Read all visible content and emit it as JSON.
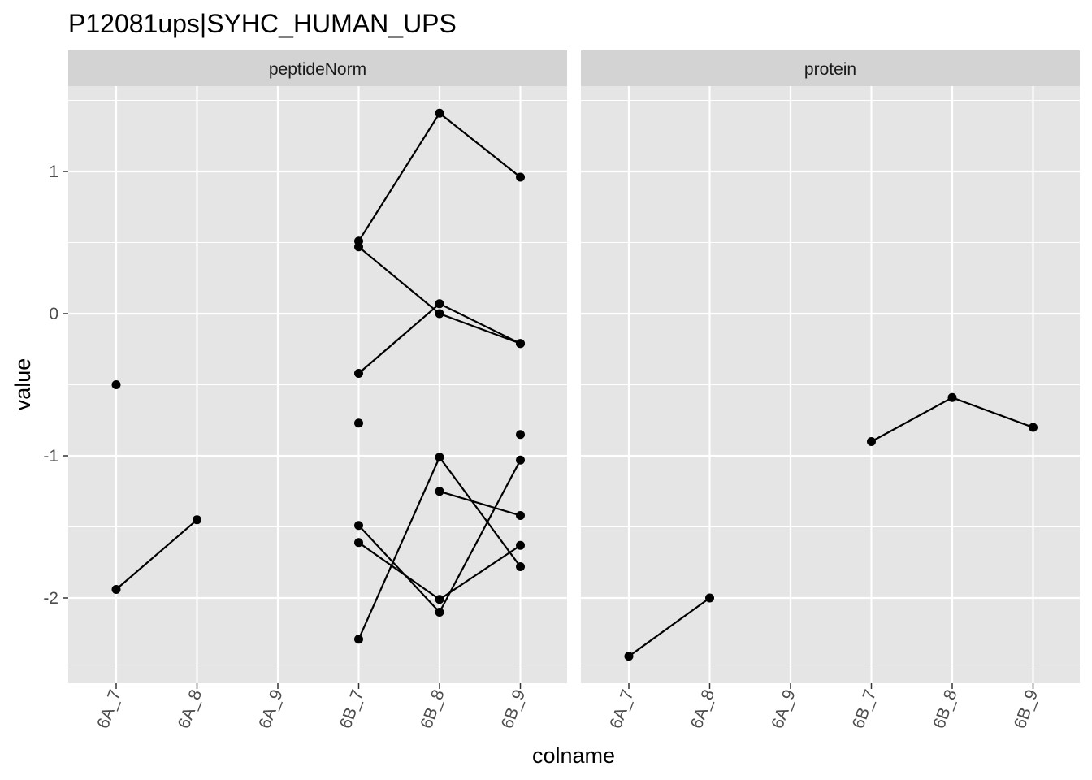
{
  "chart_data": {
    "type": "line",
    "title": "P12081ups|SYHC_HUMAN_UPS",
    "xlabel": "colname",
    "ylabel": "value",
    "categories": [
      "6A_7",
      "6A_8",
      "6A_9",
      "6B_7",
      "6B_8",
      "6B_9"
    ],
    "ylim": [
      -2.6,
      1.6
    ],
    "yticks": [
      -2,
      -1,
      0,
      1
    ],
    "grid": true,
    "legend": "none",
    "colors": {
      "panel_bg": "#e5e5e5",
      "strip_bg": "#d3d3d3",
      "grid": "#ffffff",
      "line": "#000000",
      "point": "#000000",
      "tick": "#333333"
    },
    "panels": [
      {
        "label": "peptideNorm",
        "lines": [
          [
            [
              "6A_7",
              -1.94
            ],
            [
              "6A_8",
              -1.45
            ]
          ],
          [
            [
              "6B_7",
              0.51
            ],
            [
              "6B_8",
              1.41
            ],
            [
              "6B_9",
              0.96
            ]
          ],
          [
            [
              "6B_7",
              0.47
            ],
            [
              "6B_8",
              0.0
            ],
            [
              "6B_9",
              -0.21
            ]
          ],
          [
            [
              "6B_7",
              -0.42
            ],
            [
              "6B_8",
              0.07
            ],
            [
              "6B_9",
              -0.21
            ]
          ],
          [
            [
              "6B_7",
              -1.49
            ],
            [
              "6B_8",
              -2.1
            ],
            [
              "6B_9",
              -1.03
            ]
          ],
          [
            [
              "6B_7",
              -1.61
            ],
            [
              "6B_8",
              -2.01
            ],
            [
              "6B_9",
              -1.63
            ]
          ],
          [
            [
              "6B_7",
              -2.29
            ],
            [
              "6B_8",
              -1.01
            ],
            [
              "6B_9",
              -1.78
            ]
          ],
          [
            [
              "6B_8",
              -1.25
            ],
            [
              "6B_9",
              -1.42
            ]
          ]
        ],
        "points": [
          [
            "6A_7",
            -0.5
          ],
          [
            "6B_7",
            -0.77
          ],
          [
            "6B_9",
            -0.85
          ]
        ]
      },
      {
        "label": "protein",
        "lines": [
          [
            [
              "6A_7",
              -2.41
            ],
            [
              "6A_8",
              -2.0
            ]
          ],
          [
            [
              "6B_7",
              -0.9
            ],
            [
              "6B_8",
              -0.59
            ],
            [
              "6B_9",
              -0.8
            ]
          ]
        ],
        "points": []
      }
    ]
  }
}
